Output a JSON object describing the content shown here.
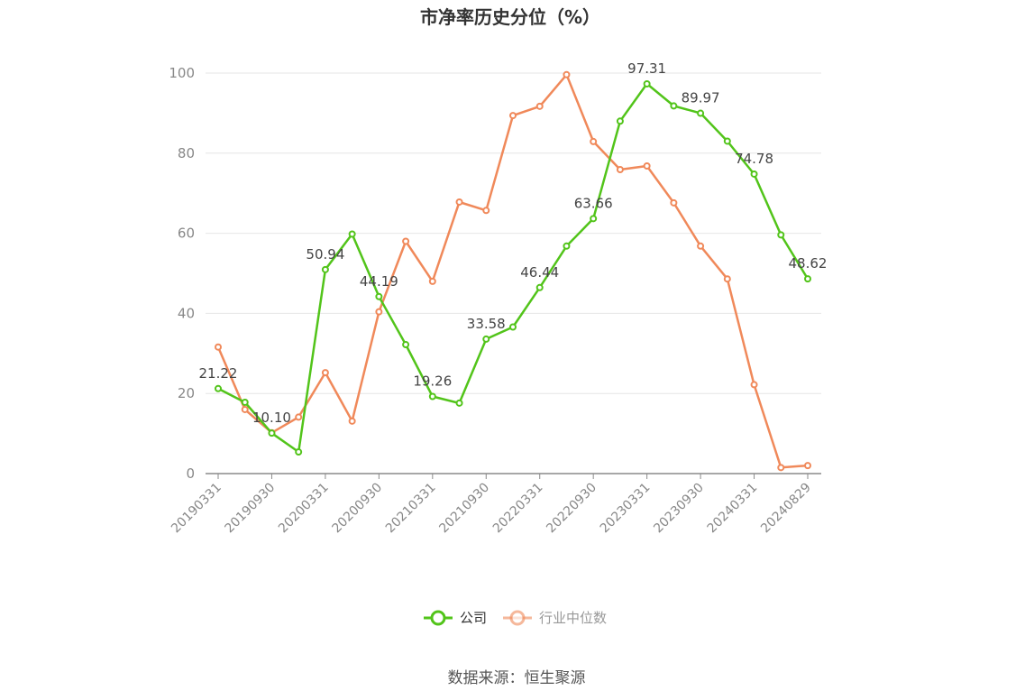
{
  "chart_data": {
    "type": "line",
    "title": "市净率历史分位（%）",
    "ylim": [
      0,
      100
    ],
    "yticks": [
      "0",
      "20",
      "40",
      "60",
      "80",
      "100"
    ],
    "grid": true,
    "legend_position": "bottom",
    "x": [
      "20190331",
      "20190630",
      "20190930",
      "20191231",
      "20200331",
      "20200630",
      "20200930",
      "20201231",
      "20210331",
      "20210630",
      "20210930",
      "20211231",
      "20220331",
      "20220630",
      "20220930",
      "20221231",
      "20230331",
      "20230630",
      "20230930",
      "20231231",
      "20240331",
      "20240630",
      "20240829"
    ],
    "xtick_labels": [
      "20190331",
      "20190930",
      "20200331",
      "20200930",
      "20210331",
      "20210930",
      "20220331",
      "20220930",
      "20230331",
      "20230930",
      "20240331",
      "20240829"
    ],
    "series": [
      {
        "name": "公司",
        "color": "#52c41a",
        "values": [
          21.22,
          17.8,
          10.1,
          5.4,
          50.94,
          59.8,
          44.19,
          32.2,
          19.26,
          17.6,
          33.58,
          36.6,
          46.44,
          56.8,
          63.66,
          88.0,
          97.31,
          91.8,
          89.97,
          83.0,
          74.78,
          59.6,
          48.62
        ],
        "labeled_indices": [
          0,
          2,
          4,
          6,
          8,
          10,
          12,
          14,
          16,
          18,
          20,
          22
        ]
      },
      {
        "name": "行业中位数",
        "color": "#f0895a",
        "values": [
          31.6,
          16.0,
          10.2,
          14.1,
          25.2,
          13.1,
          40.4,
          58.0,
          48.0,
          67.8,
          65.7,
          89.4,
          91.7,
          99.6,
          82.9,
          75.9,
          76.8,
          67.6,
          56.8,
          48.6,
          22.2,
          1.5,
          2.0
        ]
      }
    ],
    "source": "数据来源：恒生聚源"
  }
}
